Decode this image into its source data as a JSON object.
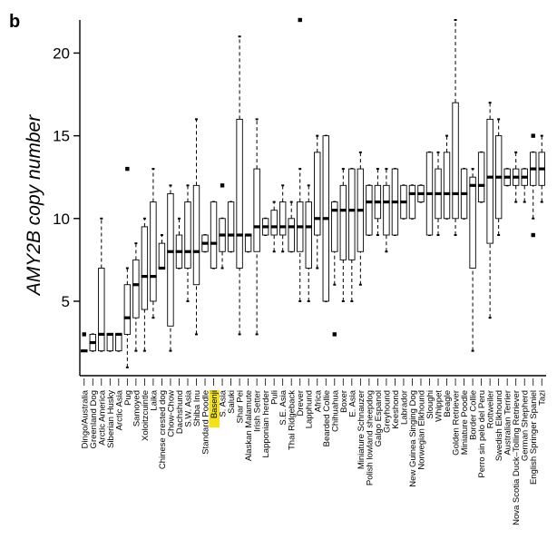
{
  "panel_label": "b",
  "highlight_color": "#f5e11a",
  "chart_data": {
    "type": "box",
    "title": "",
    "ylabel": "AMY2B copy number",
    "xlabel": "",
    "ylim": [
      0.5,
      22
    ],
    "yticks": [
      5,
      10,
      15,
      20
    ],
    "grid": false,
    "highlighted_category": "Basenji",
    "categories": [
      {
        "name": "Dingo/Australia",
        "q1": 2,
        "median": 2,
        "q3": 2,
        "min": 2,
        "max": 2,
        "outliers": [
          3
        ]
      },
      {
        "name": "Greenland Dog",
        "q1": 2,
        "median": 2.5,
        "q3": 3,
        "min": 2,
        "max": 3,
        "outliers": []
      },
      {
        "name": "Arctic America",
        "q1": 2,
        "median": 3,
        "q3": 7,
        "min": 2,
        "max": 10,
        "outliers": []
      },
      {
        "name": "Siberian Husky",
        "q1": 2,
        "median": 3,
        "q3": 3,
        "min": 2,
        "max": 3,
        "outliers": []
      },
      {
        "name": "Arctic Asia",
        "q1": 2,
        "median": 3,
        "q3": 3,
        "min": 2,
        "max": 3,
        "outliers": []
      },
      {
        "name": "Pug",
        "q1": 3,
        "median": 4,
        "q3": 6,
        "min": 1,
        "max": 7,
        "outliers": [
          13
        ]
      },
      {
        "name": "Samoyed",
        "q1": 4,
        "median": 6,
        "q3": 7.5,
        "min": 2,
        "max": 8.5,
        "outliers": []
      },
      {
        "name": "Xoloitzcuintle",
        "q1": 4.5,
        "median": 6.5,
        "q3": 9.5,
        "min": 2,
        "max": 10,
        "outliers": []
      },
      {
        "name": "Laika",
        "q1": 5,
        "median": 6.5,
        "q3": 11,
        "min": 4,
        "max": 13,
        "outliers": []
      },
      {
        "name": "Chinese crested dog",
        "q1": 7,
        "median": 7,
        "q3": 8.5,
        "min": 7,
        "max": 9,
        "outliers": []
      },
      {
        "name": "Chow-Chow",
        "q1": 3.5,
        "median": 8,
        "q3": 11.5,
        "min": 2,
        "max": 12,
        "outliers": []
      },
      {
        "name": "Dachshund",
        "q1": 7,
        "median": 8,
        "q3": 9,
        "min": 7,
        "max": 10,
        "outliers": []
      },
      {
        "name": "S.W. Asia",
        "q1": 7,
        "median": 8,
        "q3": 11,
        "min": 5,
        "max": 12,
        "outliers": []
      },
      {
        "name": "Shiba Inu",
        "q1": 6,
        "median": 8,
        "q3": 12,
        "min": 3,
        "max": 16,
        "outliers": []
      },
      {
        "name": "Standard Poodle",
        "q1": 8,
        "median": 8.5,
        "q3": 9,
        "min": 8,
        "max": 9,
        "outliers": []
      },
      {
        "name": "Basenji",
        "q1": 7,
        "median": 8.5,
        "q3": 11,
        "min": 7,
        "max": 11,
        "outliers": []
      },
      {
        "name": "S. Asia",
        "q1": 8,
        "median": 9,
        "q3": 10,
        "min": 7,
        "max": 10,
        "outliers": [
          12
        ]
      },
      {
        "name": "Saluki",
        "q1": 8,
        "median": 9,
        "q3": 11,
        "min": 8,
        "max": 11,
        "outliers": []
      },
      {
        "name": "Shar Pei",
        "q1": 7,
        "median": 9,
        "q3": 16,
        "min": 3,
        "max": 21,
        "outliers": []
      },
      {
        "name": "Alaskan Malamute",
        "q1": 8,
        "median": 9,
        "q3": 9,
        "min": 8,
        "max": 9,
        "outliers": []
      },
      {
        "name": "Irish Setter",
        "q1": 8,
        "median": 9.5,
        "q3": 13,
        "min": 3,
        "max": 16,
        "outliers": []
      },
      {
        "name": "Lapponian herder",
        "q1": 9,
        "median": 9.5,
        "q3": 10,
        "min": 9,
        "max": 10,
        "outliers": []
      },
      {
        "name": "Puli",
        "q1": 9,
        "median": 9.5,
        "q3": 10.5,
        "min": 8,
        "max": 11,
        "outliers": []
      },
      {
        "name": "S.E. Asia",
        "q1": 9,
        "median": 9.5,
        "q3": 11,
        "min": 8,
        "max": 12,
        "outliers": []
      },
      {
        "name": "Thai Ridgeback",
        "q1": 8,
        "median": 9.5,
        "q3": 10,
        "min": 8,
        "max": 11,
        "outliers": []
      },
      {
        "name": "Drever",
        "q1": 8,
        "median": 9.5,
        "q3": 11,
        "min": 5,
        "max": 13,
        "outliers": [
          22
        ]
      },
      {
        "name": "Lapphund",
        "q1": 7,
        "median": 9.5,
        "q3": 11,
        "min": 5,
        "max": 12,
        "outliers": []
      },
      {
        "name": "Africa",
        "q1": 9,
        "median": 10,
        "q3": 14,
        "min": 7,
        "max": 15,
        "outliers": []
      },
      {
        "name": "Bearded Collie",
        "q1": 5,
        "median": 10,
        "q3": 15,
        "min": 5,
        "max": 15,
        "outliers": []
      },
      {
        "name": "Chihuahua",
        "q1": 8,
        "median": 10.5,
        "q3": 11,
        "min": 6,
        "max": 11,
        "outliers": [
          3
        ]
      },
      {
        "name": "Boxer",
        "q1": 7.5,
        "median": 10.5,
        "q3": 12,
        "min": 5,
        "max": 13,
        "outliers": []
      },
      {
        "name": "E. Asia",
        "q1": 7.5,
        "median": 10.5,
        "q3": 13,
        "min": 5,
        "max": 13,
        "outliers": []
      },
      {
        "name": "Miniature Schnauzer",
        "q1": 8,
        "median": 10.5,
        "q3": 13,
        "min": 6,
        "max": 14,
        "outliers": []
      },
      {
        "name": "Polish lowland sheepdog",
        "q1": 9,
        "median": 11,
        "q3": 12,
        "min": 9,
        "max": 12,
        "outliers": []
      },
      {
        "name": "Galgo Espanol",
        "q1": 10,
        "median": 11,
        "q3": 12,
        "min": 9,
        "max": 13,
        "outliers": []
      },
      {
        "name": "Greyhound",
        "q1": 9,
        "median": 11,
        "q3": 12,
        "min": 8,
        "max": 13,
        "outliers": []
      },
      {
        "name": "Keeshond",
        "q1": 9,
        "median": 11,
        "q3": 13,
        "min": 9,
        "max": 13,
        "outliers": []
      },
      {
        "name": "Labrador",
        "q1": 10,
        "median": 11,
        "q3": 12,
        "min": 10,
        "max": 12,
        "outliers": []
      },
      {
        "name": "New Guinea Singing Dog",
        "q1": 10,
        "median": 11.5,
        "q3": 12,
        "min": 10,
        "max": 12,
        "outliers": []
      },
      {
        "name": "Norwegian Elkhound",
        "q1": 11,
        "median": 11.5,
        "q3": 12,
        "min": 11,
        "max": 12,
        "outliers": []
      },
      {
        "name": "Sloughi",
        "q1": 9,
        "median": 11.5,
        "q3": 14,
        "min": 9,
        "max": 14,
        "outliers": []
      },
      {
        "name": "Whippet",
        "q1": 10,
        "median": 11.5,
        "q3": 13,
        "min": 9,
        "max": 14,
        "outliers": []
      },
      {
        "name": "Beagle",
        "q1": 10,
        "median": 11.5,
        "q3": 14,
        "min": 10,
        "max": 15,
        "outliers": []
      },
      {
        "name": "Golden Retriever",
        "q1": 10,
        "median": 11.5,
        "q3": 17,
        "min": 9,
        "max": 22,
        "outliers": []
      },
      {
        "name": "Miniature Poodle",
        "q1": 10,
        "median": 11.5,
        "q3": 13,
        "min": 10,
        "max": 13,
        "outliers": []
      },
      {
        "name": "Border Collie",
        "q1": 7,
        "median": 12,
        "q3": 12.5,
        "min": 2,
        "max": 13,
        "outliers": []
      },
      {
        "name": "Perro sin pelo del Peru",
        "q1": 11,
        "median": 12,
        "q3": 14,
        "min": 11,
        "max": 14,
        "outliers": []
      },
      {
        "name": "Rottweiler",
        "q1": 8.5,
        "median": 12.5,
        "q3": 16,
        "min": 4,
        "max": 17,
        "outliers": []
      },
      {
        "name": "Swedish Elkhound",
        "q1": 10,
        "median": 12.5,
        "q3": 15,
        "min": 9,
        "max": 16,
        "outliers": []
      },
      {
        "name": "Australian Terrier",
        "q1": 12,
        "median": 12.5,
        "q3": 13,
        "min": 12,
        "max": 13,
        "outliers": []
      },
      {
        "name": "Nova Scotia Duck–Tolling Retriever",
        "q1": 12,
        "median": 12.5,
        "q3": 13,
        "min": 11,
        "max": 14,
        "outliers": []
      },
      {
        "name": "German Shepherd",
        "q1": 12,
        "median": 12.5,
        "q3": 13,
        "min": 11,
        "max": 13,
        "outliers": []
      },
      {
        "name": "English Springer Spaniel",
        "q1": 12,
        "median": 13,
        "q3": 14,
        "min": 10,
        "max": 14,
        "outliers": [
          15,
          9
        ]
      },
      {
        "name": "Tazi",
        "q1": 12,
        "median": 13,
        "q3": 14,
        "min": 11,
        "max": 15,
        "outliers": []
      }
    ]
  }
}
